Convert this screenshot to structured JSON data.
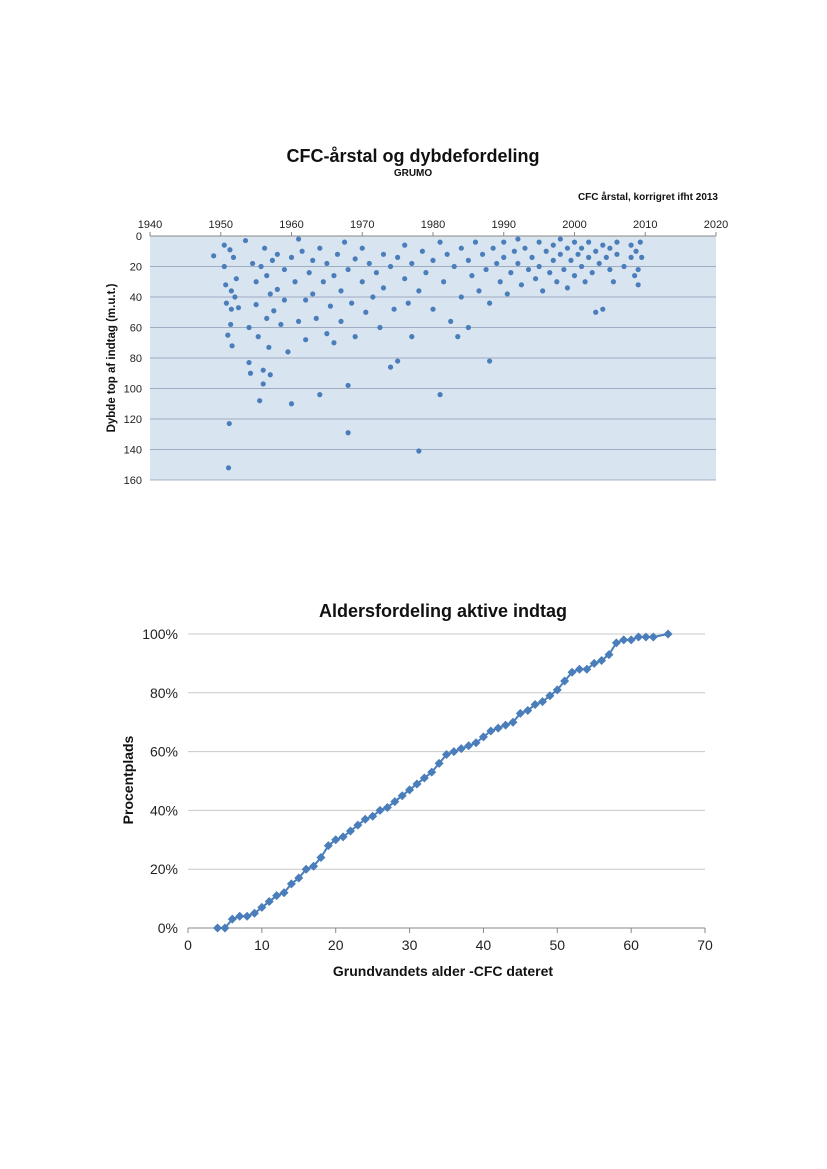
{
  "chart_data": [
    {
      "type": "scatter",
      "title": "CFC-årstal og dybdefordeling",
      "subtitle": "GRUMO",
      "xlabel": "CFC årstal, korrigret ifht 2013",
      "ylabel": "Dybde top af indtag (m.u.t.)",
      "xlim": [
        1940,
        2020
      ],
      "ylim": [
        0,
        160
      ],
      "y_inverted": true,
      "x_axis_position": "top",
      "x_ticks": [
        "1940",
        "1950",
        "1960",
        "1970",
        "1980",
        "1990",
        "2000",
        "2010",
        "2020"
      ],
      "y_ticks": [
        "0",
        "20",
        "40",
        "60",
        "80",
        "100",
        "120",
        "140",
        "160"
      ],
      "grid": true,
      "plot_background": "#d9e4f1",
      "marker_color": "#4a7ebb",
      "points": [
        [
          1949,
          13
        ],
        [
          1950.5,
          6
        ],
        [
          1950.5,
          20
        ],
        [
          1950.7,
          32
        ],
        [
          1950.8,
          44
        ],
        [
          1951,
          65
        ],
        [
          1951.2,
          123
        ],
        [
          1951.1,
          152
        ],
        [
          1951.3,
          9
        ],
        [
          1951.5,
          36
        ],
        [
          1951.5,
          48
        ],
        [
          1951.4,
          58
        ],
        [
          1951.6,
          72
        ],
        [
          1951.8,
          14
        ],
        [
          1952,
          40
        ],
        [
          1952.2,
          28
        ],
        [
          1952.5,
          47
        ],
        [
          1953.5,
          3
        ],
        [
          1954,
          60
        ],
        [
          1954,
          83
        ],
        [
          1954.2,
          90
        ],
        [
          1954.5,
          18
        ],
        [
          1955,
          30
        ],
        [
          1955,
          45
        ],
        [
          1955.3,
          66
        ],
        [
          1955.5,
          108
        ],
        [
          1955.7,
          20
        ],
        [
          1956,
          88
        ],
        [
          1956,
          97
        ],
        [
          1956.2,
          8
        ],
        [
          1956.5,
          26
        ],
        [
          1956.5,
          54
        ],
        [
          1956.8,
          73
        ],
        [
          1957,
          38
        ],
        [
          1957,
          91
        ],
        [
          1957.3,
          16
        ],
        [
          1957.5,
          49
        ],
        [
          1958,
          12
        ],
        [
          1958,
          35
        ],
        [
          1958.5,
          58
        ],
        [
          1959,
          22
        ],
        [
          1959,
          42
        ],
        [
          1959.5,
          76
        ],
        [
          1960,
          110
        ],
        [
          1960,
          14
        ],
        [
          1960.5,
          30
        ],
        [
          1961,
          56
        ],
        [
          1961,
          2
        ],
        [
          1961.5,
          10
        ],
        [
          1962,
          42
        ],
        [
          1962,
          68
        ],
        [
          1962.5,
          24
        ],
        [
          1963,
          16
        ],
        [
          1963,
          38
        ],
        [
          1963.5,
          54
        ],
        [
          1964,
          104
        ],
        [
          1964,
          8
        ],
        [
          1964.5,
          30
        ],
        [
          1965,
          64
        ],
        [
          1965,
          18
        ],
        [
          1965.5,
          46
        ],
        [
          1966,
          26
        ],
        [
          1966,
          70
        ],
        [
          1966.5,
          12
        ],
        [
          1967,
          36
        ],
        [
          1967,
          56
        ],
        [
          1967.5,
          4
        ],
        [
          1968,
          98
        ],
        [
          1968,
          129
        ],
        [
          1968,
          22
        ],
        [
          1968.5,
          44
        ],
        [
          1969,
          15
        ],
        [
          1969,
          66
        ],
        [
          1970,
          30
        ],
        [
          1970,
          8
        ],
        [
          1970.5,
          50
        ],
        [
          1971,
          18
        ],
        [
          1971.5,
          40
        ],
        [
          1972,
          24
        ],
        [
          1972.5,
          60
        ],
        [
          1973,
          12
        ],
        [
          1973,
          34
        ],
        [
          1974,
          86
        ],
        [
          1974,
          20
        ],
        [
          1974.5,
          48
        ],
        [
          1975,
          82
        ],
        [
          1975,
          14
        ],
        [
          1976,
          28
        ],
        [
          1976,
          6
        ],
        [
          1976.5,
          44
        ],
        [
          1977,
          66
        ],
        [
          1977,
          18
        ],
        [
          1978,
          141
        ],
        [
          1978,
          36
        ],
        [
          1978.5,
          10
        ],
        [
          1979,
          24
        ],
        [
          1980,
          16
        ],
        [
          1980,
          48
        ],
        [
          1981,
          104
        ],
        [
          1981,
          4
        ],
        [
          1981.5,
          30
        ],
        [
          1982,
          12
        ],
        [
          1982.5,
          56
        ],
        [
          1983,
          20
        ],
        [
          1983.5,
          66
        ],
        [
          1984,
          8
        ],
        [
          1984,
          40
        ],
        [
          1985,
          16
        ],
        [
          1985,
          60
        ],
        [
          1985.5,
          26
        ],
        [
          1986,
          4
        ],
        [
          1986.5,
          36
        ],
        [
          1987,
          12
        ],
        [
          1987.5,
          22
        ],
        [
          1988,
          82
        ],
        [
          1988,
          44
        ],
        [
          1988.5,
          8
        ],
        [
          1989,
          18
        ],
        [
          1989.5,
          30
        ],
        [
          1990,
          4
        ],
        [
          1990,
          14
        ],
        [
          1990.5,
          38
        ],
        [
          1991,
          24
        ],
        [
          1991.5,
          10
        ],
        [
          1992,
          2
        ],
        [
          1992,
          18
        ],
        [
          1992.5,
          32
        ],
        [
          1993,
          8
        ],
        [
          1993.5,
          22
        ],
        [
          1994,
          14
        ],
        [
          1994.5,
          28
        ],
        [
          1995,
          4
        ],
        [
          1995,
          20
        ],
        [
          1995.5,
          36
        ],
        [
          1996,
          10
        ],
        [
          1996.5,
          24
        ],
        [
          1997,
          6
        ],
        [
          1997,
          16
        ],
        [
          1997.5,
          30
        ],
        [
          1998,
          2
        ],
        [
          1998,
          12
        ],
        [
          1998.5,
          22
        ],
        [
          1999,
          8
        ],
        [
          1999,
          34
        ],
        [
          1999.5,
          16
        ],
        [
          2000,
          4
        ],
        [
          2000,
          26
        ],
        [
          2000.5,
          12
        ],
        [
          2001,
          8
        ],
        [
          2001,
          20
        ],
        [
          2001.5,
          30
        ],
        [
          2002,
          4
        ],
        [
          2002,
          14
        ],
        [
          2002.5,
          24
        ],
        [
          2003,
          10
        ],
        [
          2003,
          50
        ],
        [
          2003.5,
          18
        ],
        [
          2004,
          6
        ],
        [
          2004,
          48
        ],
        [
          2004.5,
          14
        ],
        [
          2005,
          22
        ],
        [
          2005,
          8
        ],
        [
          2005.5,
          30
        ],
        [
          2006,
          12
        ],
        [
          2006,
          4
        ],
        [
          2007,
          20
        ],
        [
          2008,
          6
        ],
        [
          2008,
          14
        ],
        [
          2008.5,
          26
        ],
        [
          2008.7,
          10
        ],
        [
          2009,
          32
        ],
        [
          2009,
          22
        ],
        [
          2009.3,
          4
        ],
        [
          2009.5,
          14
        ]
      ]
    },
    {
      "type": "line",
      "title": "Aldersfordeling aktive indtag",
      "xlabel": "Grundvandets alder -CFC dateret",
      "ylabel": "Procentplads",
      "xlim": [
        0,
        70
      ],
      "ylim": [
        0,
        100
      ],
      "x_ticks": [
        "0",
        "10",
        "20",
        "30",
        "40",
        "50",
        "60",
        "70"
      ],
      "y_ticks": [
        "0%",
        "20%",
        "40%",
        "60%",
        "80%",
        "100%"
      ],
      "grid": true,
      "marker": "diamond",
      "line_color": "#4a7ebb",
      "x": [
        4,
        5,
        6,
        7,
        8,
        9,
        10,
        11,
        12,
        13,
        14,
        15,
        16,
        17,
        18,
        19,
        20,
        21,
        22,
        23,
        24,
        25,
        26,
        27,
        28,
        29,
        30,
        31,
        32,
        33,
        34,
        35,
        36,
        37,
        38,
        39,
        40,
        41,
        42,
        43,
        44,
        45,
        46,
        47,
        48,
        49,
        50,
        51,
        52,
        53,
        54,
        55,
        56,
        57,
        58,
        59,
        60,
        61,
        62,
        63,
        65
      ],
      "y": [
        0,
        0,
        3,
        4,
        4,
        5,
        7,
        9,
        11,
        12,
        15,
        17,
        20,
        21,
        24,
        28,
        30,
        31,
        33,
        35,
        37,
        38,
        40,
        41,
        43,
        45,
        47,
        49,
        51,
        53,
        56,
        59,
        60,
        61,
        62,
        63,
        65,
        67,
        68,
        69,
        70,
        73,
        74,
        76,
        77,
        79,
        81,
        84,
        87,
        88,
        88,
        90,
        91,
        93,
        97,
        98,
        98,
        99,
        99,
        99,
        100
      ]
    }
  ]
}
